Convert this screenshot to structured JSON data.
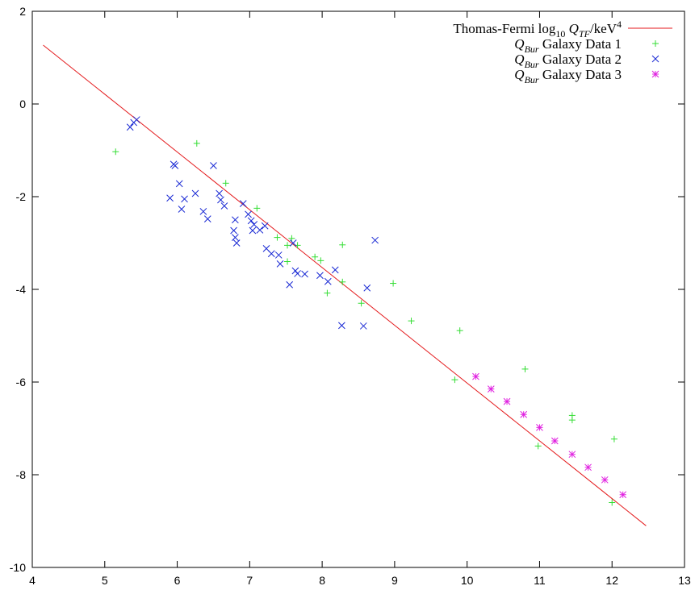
{
  "chart_data": {
    "type": "scatter",
    "title": "",
    "xlabel": "",
    "ylabel": "",
    "xlim": [
      4,
      13
    ],
    "ylim": [
      -10,
      2
    ],
    "x_ticks": [
      "4",
      "5",
      "6",
      "7",
      "8",
      "9",
      "10",
      "11",
      "12",
      "13"
    ],
    "y_ticks": [
      "2",
      "0",
      "-2",
      "-4",
      "-6",
      "-8",
      "-10"
    ],
    "grid": false,
    "legend_position": "top-right",
    "colors": {
      "fit": "#e41a1c",
      "data1": "#33dd33",
      "data2": "#1a2ad4",
      "data3": "#e020e0"
    },
    "series": [
      {
        "name": "Thomas-Fermi log10 QTF/keV4",
        "legend_parts": {
          "pre": "Thomas-Fermi log",
          "sub1": "10",
          "var": "Q",
          "sub2": "TF",
          "post": "/keV",
          "sup": "4"
        },
        "kind": "line",
        "color": "#e41a1c",
        "points": [
          [
            4.15,
            1.27
          ],
          [
            12.47,
            -9.1
          ]
        ]
      },
      {
        "name": "QBur Galaxy Data 1",
        "legend_parts": {
          "var": "Q",
          "sub": "Bur",
          "post": " Galaxy Data 1"
        },
        "kind": "points",
        "marker": "plus",
        "color": "#33dd33",
        "points": [
          [
            5.15,
            -1.03
          ],
          [
            6.27,
            -0.85
          ],
          [
            6.67,
            -1.71
          ],
          [
            7.1,
            -2.25
          ],
          [
            7.38,
            -2.88
          ],
          [
            7.52,
            -3.05
          ],
          [
            7.58,
            -2.9
          ],
          [
            7.52,
            -3.4
          ],
          [
            7.66,
            -3.05
          ],
          [
            7.9,
            -3.3
          ],
          [
            7.98,
            -3.38
          ],
          [
            8.28,
            -3.04
          ],
          [
            8.28,
            -3.84
          ],
          [
            8.07,
            -4.08
          ],
          [
            8.54,
            -4.3
          ],
          [
            8.98,
            -3.87
          ],
          [
            9.23,
            -4.68
          ],
          [
            9.9,
            -4.89
          ],
          [
            9.83,
            -5.95
          ],
          [
            10.8,
            -5.72
          ],
          [
            11.45,
            -6.72
          ],
          [
            11.45,
            -6.82
          ],
          [
            10.98,
            -7.38
          ],
          [
            12.03,
            -7.23
          ],
          [
            12.0,
            -8.6
          ]
        ]
      },
      {
        "name": "QBur Galaxy Data 2",
        "legend_parts": {
          "var": "Q",
          "sub": "Bur",
          "post": " Galaxy Data 2"
        },
        "kind": "points",
        "marker": "cross",
        "color": "#1a2ad4",
        "points": [
          [
            5.35,
            -0.5
          ],
          [
            5.4,
            -0.4
          ],
          [
            5.44,
            -0.34
          ],
          [
            5.95,
            -1.3
          ],
          [
            5.97,
            -1.33
          ],
          [
            5.9,
            -2.03
          ],
          [
            6.03,
            -1.72
          ],
          [
            6.1,
            -2.05
          ],
          [
            6.06,
            -2.27
          ],
          [
            6.25,
            -1.93
          ],
          [
            6.36,
            -2.32
          ],
          [
            6.42,
            -2.48
          ],
          [
            6.5,
            -1.33
          ],
          [
            6.58,
            -1.93
          ],
          [
            6.6,
            -2.07
          ],
          [
            6.65,
            -2.2
          ],
          [
            6.8,
            -2.5
          ],
          [
            6.78,
            -2.73
          ],
          [
            6.8,
            -2.88
          ],
          [
            6.82,
            -3.0
          ],
          [
            6.91,
            -2.15
          ],
          [
            6.98,
            -2.38
          ],
          [
            7.02,
            -2.52
          ],
          [
            7.06,
            -2.6
          ],
          [
            7.04,
            -2.73
          ],
          [
            7.14,
            -2.72
          ],
          [
            7.21,
            -2.63
          ],
          [
            7.23,
            -3.12
          ],
          [
            7.3,
            -3.23
          ],
          [
            7.4,
            -3.26
          ],
          [
            7.42,
            -3.45
          ],
          [
            7.55,
            -3.9
          ],
          [
            7.6,
            -3.0
          ],
          [
            7.63,
            -3.6
          ],
          [
            7.66,
            -3.66
          ],
          [
            7.76,
            -3.67
          ],
          [
            7.97,
            -3.7
          ],
          [
            8.08,
            -3.83
          ],
          [
            8.18,
            -3.58
          ],
          [
            8.27,
            -4.78
          ],
          [
            8.57,
            -4.79
          ],
          [
            8.62,
            -3.97
          ],
          [
            8.73,
            -2.94
          ]
        ]
      },
      {
        "name": "QBur Galaxy Data 3",
        "legend_parts": {
          "var": "Q",
          "sub": "Bur",
          "post": " Galaxy Data 3"
        },
        "kind": "points",
        "marker": "star",
        "color": "#e020e0",
        "points": [
          [
            10.12,
            -5.88
          ],
          [
            10.33,
            -6.15
          ],
          [
            10.55,
            -6.42
          ],
          [
            10.78,
            -6.7
          ],
          [
            11.0,
            -6.98
          ],
          [
            11.21,
            -7.27
          ],
          [
            11.45,
            -7.56
          ],
          [
            11.67,
            -7.84
          ],
          [
            11.9,
            -8.11
          ],
          [
            12.15,
            -8.43
          ]
        ]
      }
    ]
  }
}
